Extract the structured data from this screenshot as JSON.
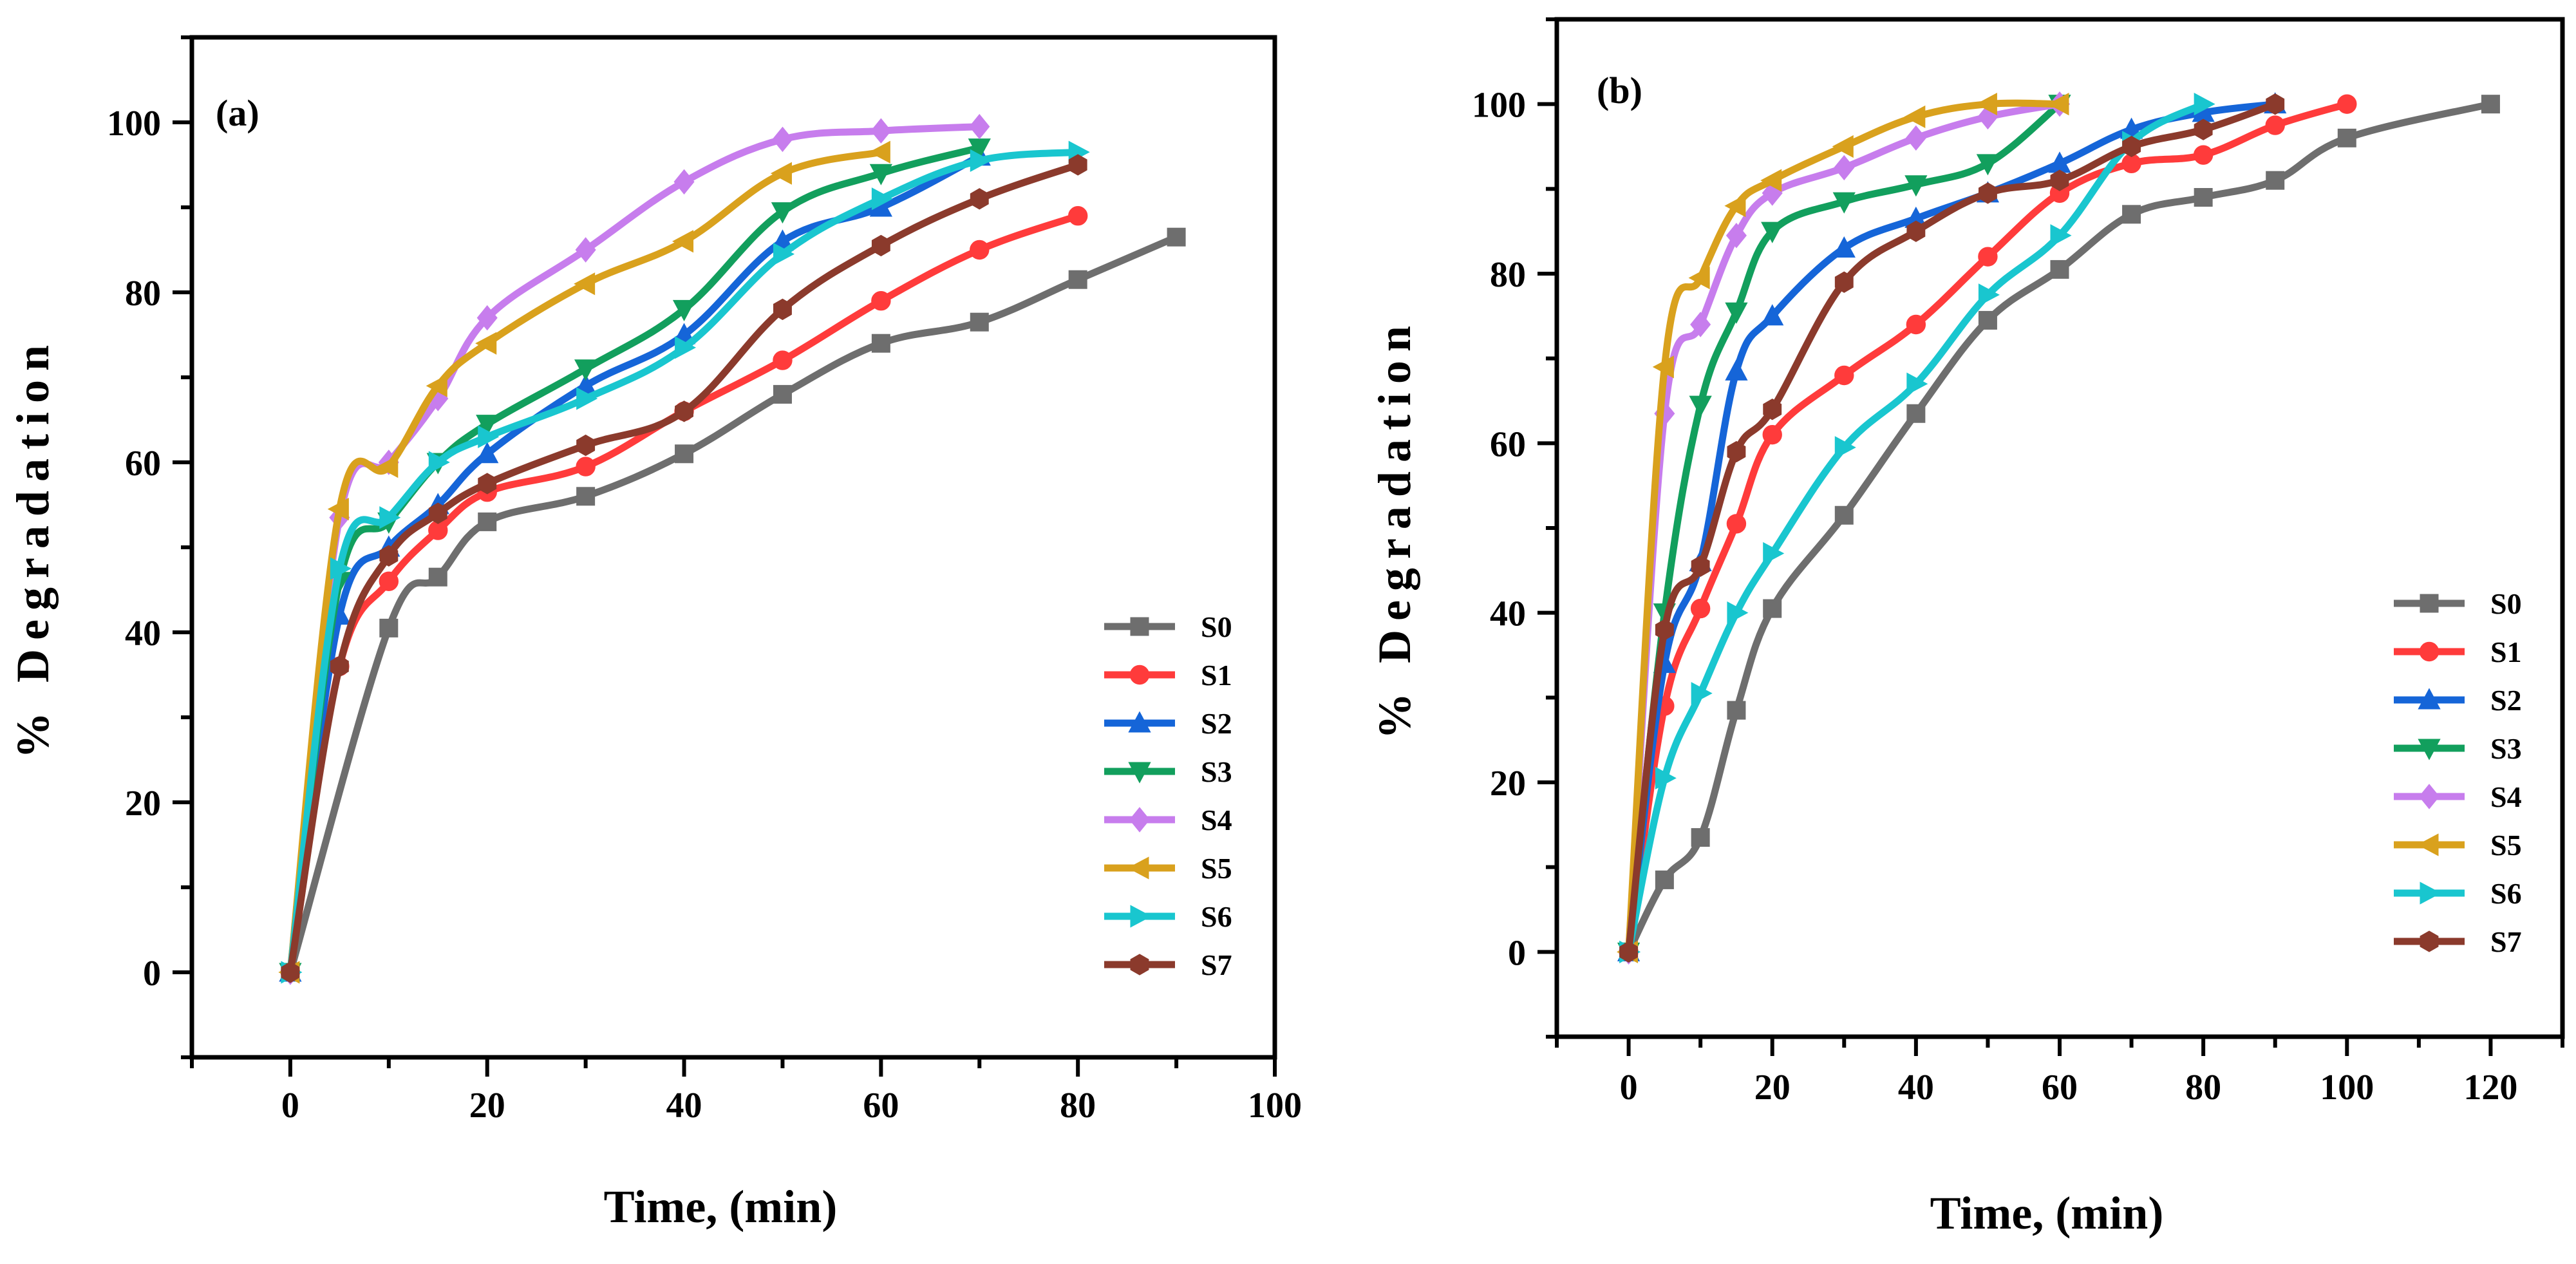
{
  "figure": {
    "description_label": "Two-panel degradation kinetics figure"
  },
  "chart_data": [
    {
      "type": "line",
      "panel_label": "(a)",
      "title": "",
      "xlabel": "Time, (min)",
      "ylabel": "% Degradation",
      "xlim": [
        -10,
        100
      ],
      "ylim": [
        -10,
        110
      ],
      "xticks": [
        0,
        20,
        40,
        60,
        80,
        100
      ],
      "yticks": [
        0,
        20,
        40,
        60,
        80,
        100
      ],
      "grid": false,
      "legend": "lower-right",
      "series": [
        {
          "name": "S0",
          "color": "#6e6e6e",
          "marker": "square",
          "x": [
            0,
            10,
            15,
            20,
            30,
            40,
            50,
            60,
            70,
            80,
            90
          ],
          "y": [
            0,
            40.5,
            46.5,
            53,
            56,
            61,
            68,
            74,
            76.5,
            81.5,
            86.5
          ]
        },
        {
          "name": "S1",
          "color": "#ff3b3b",
          "marker": "circle",
          "x": [
            0,
            5,
            10,
            15,
            20,
            30,
            40,
            50,
            60,
            70,
            80
          ],
          "y": [
            0,
            36,
            46,
            52,
            56.5,
            59.5,
            66,
            72,
            79,
            85,
            89
          ]
        },
        {
          "name": "S2",
          "color": "#1565d8",
          "marker": "triangle-up",
          "x": [
            0,
            5,
            10,
            15,
            20,
            30,
            40,
            50,
            60,
            70
          ],
          "y": [
            0,
            42,
            50,
            55,
            61,
            69,
            75,
            86,
            90,
            96
          ]
        },
        {
          "name": "S3",
          "color": "#129f5d",
          "marker": "triangle-down",
          "x": [
            0,
            5,
            10,
            15,
            20,
            30,
            40,
            50,
            60,
            70
          ],
          "y": [
            0,
            46,
            53,
            60,
            64.5,
            71,
            78,
            89.5,
            94,
            97
          ]
        },
        {
          "name": "S4",
          "color": "#c77ded",
          "marker": "diamond",
          "x": [
            0,
            5,
            10,
            15,
            20,
            30,
            40,
            50,
            60,
            70
          ],
          "y": [
            0,
            53.5,
            60,
            67.5,
            77,
            85,
            93,
            98,
            99,
            99.5
          ]
        },
        {
          "name": "S5",
          "color": "#d9a11d",
          "marker": "triangle-left",
          "x": [
            0,
            5,
            10,
            15,
            20,
            30,
            40,
            50,
            60
          ],
          "y": [
            0,
            54.5,
            59.5,
            69,
            74,
            81,
            86,
            94,
            96.5
          ]
        },
        {
          "name": "S6",
          "color": "#19c6cf",
          "marker": "triangle-right",
          "x": [
            0,
            5,
            10,
            15,
            20,
            30,
            40,
            50,
            60,
            70,
            80
          ],
          "y": [
            0,
            47.5,
            53.5,
            60,
            63,
            67.5,
            73.5,
            84.5,
            91,
            95.5,
            96.5
          ]
        },
        {
          "name": "S7",
          "color": "#8b3a2c",
          "marker": "hexagon",
          "x": [
            0,
            5,
            10,
            15,
            20,
            30,
            40,
            50,
            60,
            70,
            80
          ],
          "y": [
            0,
            36,
            49,
            54,
            57.5,
            62,
            66,
            78,
            85.5,
            91,
            95
          ]
        }
      ]
    },
    {
      "type": "line",
      "panel_label": "(b)",
      "title": "",
      "xlabel": "Time, (min)",
      "ylabel": "% Degradation",
      "xlim": [
        -10,
        130
      ],
      "ylim": [
        -10,
        110
      ],
      "xticks": [
        0,
        20,
        40,
        60,
        80,
        100,
        120
      ],
      "yticks": [
        0,
        20,
        40,
        60,
        80,
        100
      ],
      "grid": false,
      "legend": "lower-right",
      "series": [
        {
          "name": "S0",
          "color": "#6e6e6e",
          "marker": "square",
          "x": [
            0,
            5,
            10,
            15,
            20,
            30,
            40,
            50,
            60,
            70,
            80,
            90,
            100,
            120
          ],
          "y": [
            0,
            8.5,
            13.5,
            28.5,
            40.5,
            51.5,
            63.5,
            74.5,
            80.5,
            87,
            89,
            91,
            96,
            100
          ]
        },
        {
          "name": "S1",
          "color": "#ff3b3b",
          "marker": "circle",
          "x": [
            0,
            5,
            10,
            15,
            20,
            30,
            40,
            50,
            60,
            70,
            80,
            90,
            100
          ],
          "y": [
            0,
            29,
            40.5,
            50.5,
            61,
            68,
            74,
            82,
            89.5,
            93,
            94,
            97.5,
            100
          ]
        },
        {
          "name": "S2",
          "color": "#1565d8",
          "marker": "triangle-up",
          "x": [
            0,
            5,
            10,
            15,
            20,
            30,
            40,
            50,
            60,
            70,
            80,
            90
          ],
          "y": [
            0,
            34,
            46,
            68.5,
            75,
            83,
            86.5,
            89.5,
            93,
            97,
            99,
            100
          ]
        },
        {
          "name": "S3",
          "color": "#129f5d",
          "marker": "triangle-down",
          "x": [
            0,
            5,
            10,
            15,
            20,
            30,
            40,
            50,
            60
          ],
          "y": [
            0,
            40,
            64.5,
            75.5,
            85,
            88.5,
            90.5,
            93,
            100
          ]
        },
        {
          "name": "S4",
          "color": "#c77ded",
          "marker": "diamond",
          "x": [
            0,
            5,
            10,
            15,
            20,
            30,
            40,
            50,
            60
          ],
          "y": [
            0,
            63.5,
            74,
            84.5,
            89.5,
            92.5,
            96,
            98.5,
            100
          ]
        },
        {
          "name": "S5",
          "color": "#d9a11d",
          "marker": "triangle-left",
          "x": [
            0,
            5,
            10,
            15,
            20,
            30,
            40,
            50,
            60
          ],
          "y": [
            0,
            69,
            79.5,
            88,
            91,
            95,
            98.5,
            100,
            100
          ]
        },
        {
          "name": "S6",
          "color": "#19c6cf",
          "marker": "triangle-right",
          "x": [
            0,
            5,
            10,
            15,
            20,
            30,
            40,
            50,
            60,
            70,
            80
          ],
          "y": [
            0,
            20.5,
            30.5,
            40,
            47,
            59.5,
            67,
            77.5,
            84.5,
            95.5,
            100
          ]
        },
        {
          "name": "S7",
          "color": "#8b3a2c",
          "marker": "hexagon",
          "x": [
            0,
            5,
            10,
            15,
            20,
            30,
            40,
            50,
            60,
            70,
            80,
            90
          ],
          "y": [
            0,
            38,
            45.5,
            59,
            64,
            79,
            85,
            89.5,
            91,
            95,
            97,
            100
          ]
        }
      ]
    }
  ]
}
